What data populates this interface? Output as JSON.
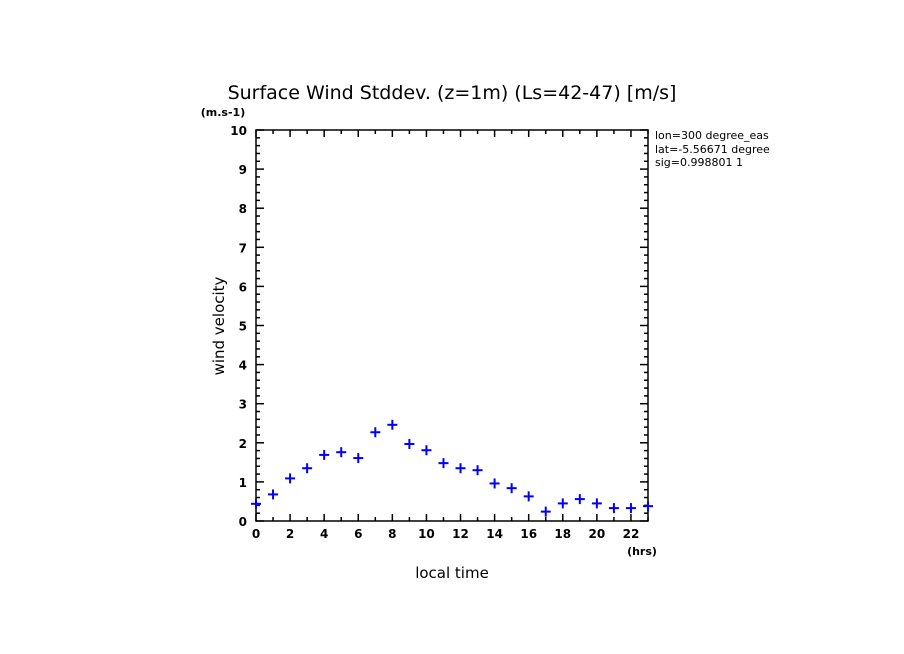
{
  "chart_data": {
    "type": "scatter",
    "title": "Surface Wind Stddev. (z=1m) (Ls=42-47) [m/s]",
    "xlabel": "local time",
    "ylabel": "wind velocity",
    "x_unit": "(hrs)",
    "y_unit": "(m.s-1)",
    "xlim": [
      0,
      23
    ],
    "ylim": [
      0,
      10
    ],
    "x_ticks": [
      "0",
      "2",
      "4",
      "6",
      "8",
      "10",
      "12",
      "14",
      "16",
      "18",
      "20",
      "22"
    ],
    "y_ticks": [
      "0",
      "1",
      "2",
      "3",
      "4",
      "5",
      "6",
      "7",
      "8",
      "9",
      "10"
    ],
    "grid": false,
    "marker": "plus",
    "color": "#0000ff",
    "x": [
      0,
      1,
      2,
      3,
      4,
      5,
      6,
      7,
      8,
      9,
      10,
      11,
      12,
      13,
      14,
      15,
      16,
      17,
      18,
      19,
      20,
      21,
      22,
      23
    ],
    "values": [
      0.44,
      0.68,
      1.09,
      1.35,
      1.69,
      1.76,
      1.61,
      2.27,
      2.46,
      1.97,
      1.81,
      1.48,
      1.35,
      1.3,
      0.96,
      0.84,
      0.63,
      0.24,
      0.45,
      0.56,
      0.45,
      0.33,
      0.33,
      0.38
    ],
    "annotations": [
      "lon=300 degree_eas",
      "lat=-5.56671 degree",
      "sig=0.998801 1"
    ]
  }
}
